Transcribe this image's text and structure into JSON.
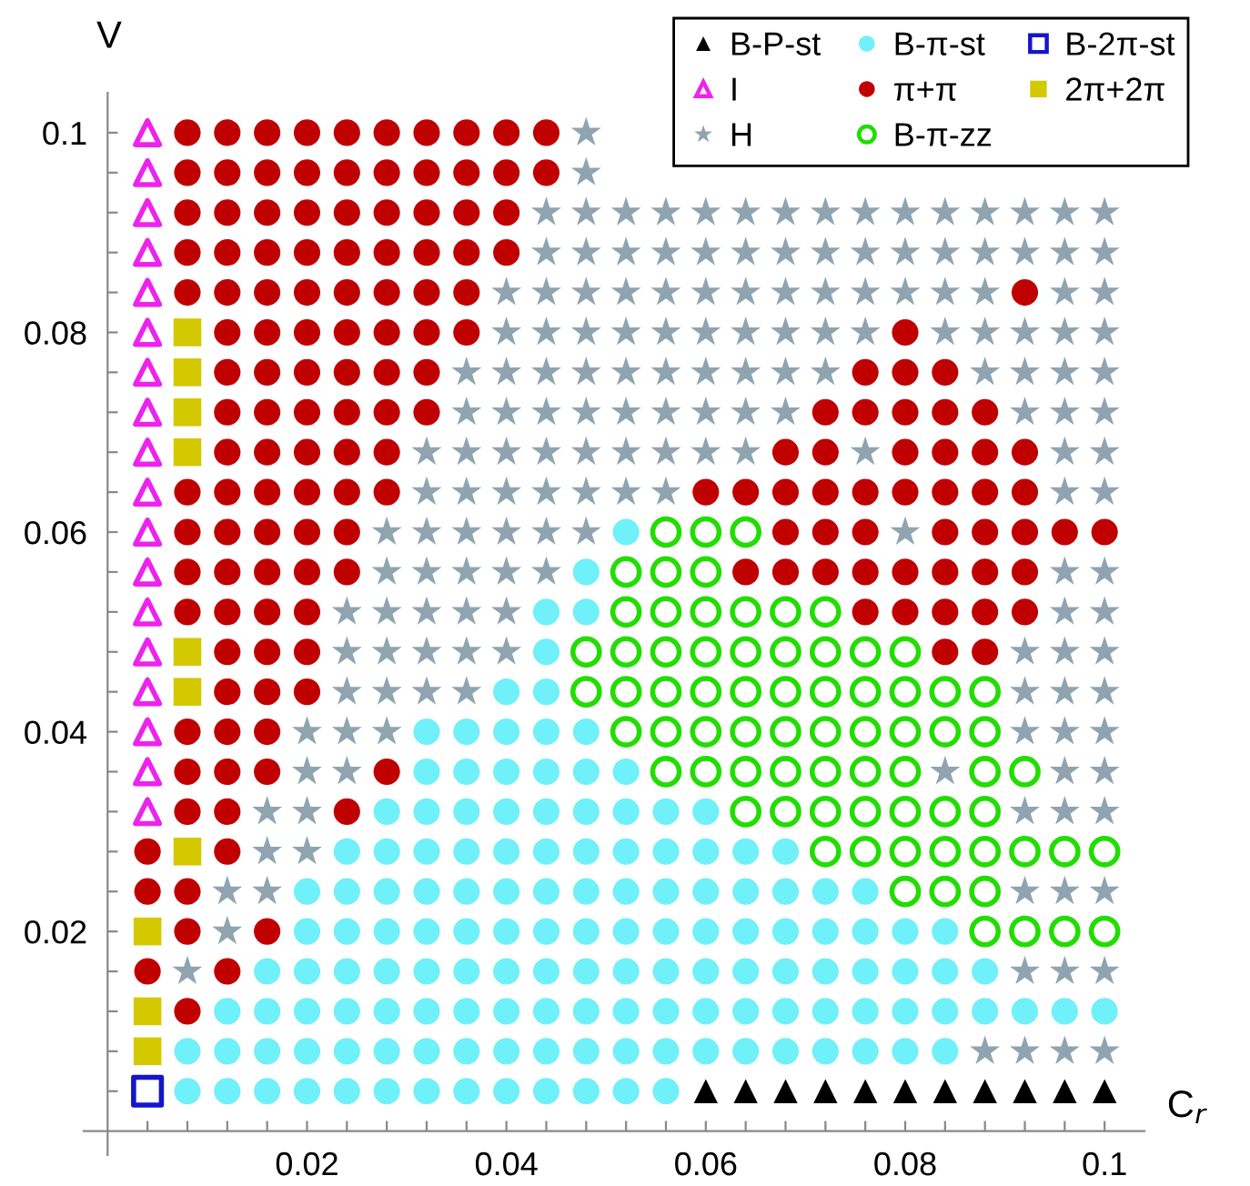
{
  "chart_data": {
    "type": "scatter",
    "xlabel": "C$_{r}$",
    "ylabel": "V",
    "xlim": [
      -0.0024,
      0.104
    ],
    "ylim": [
      -0.0024,
      0.104
    ],
    "xticks": [
      {
        "value": 0.004,
        "label": null
      },
      {
        "value": 0.008,
        "label": null
      },
      {
        "value": 0.012,
        "label": null
      },
      {
        "value": 0.016,
        "label": null
      },
      0.02,
      {
        "value": 0.024,
        "label": null
      },
      {
        "value": 0.028,
        "label": null
      },
      {
        "value": 0.032,
        "label": null
      },
      {
        "value": 0.036,
        "label": null
      },
      0.04,
      {
        "value": 0.044,
        "label": null
      },
      {
        "value": 0.048,
        "label": null
      },
      {
        "value": 0.052,
        "label": null
      },
      {
        "value": 0.056,
        "label": null
      },
      0.06,
      {
        "value": 0.064,
        "label": null
      },
      {
        "value": 0.068,
        "label": null
      },
      {
        "value": 0.072,
        "label": null
      },
      {
        "value": 0.076,
        "label": null
      },
      0.08,
      {
        "value": 0.084,
        "label": null
      },
      {
        "value": 0.088,
        "label": null
      },
      {
        "value": 0.092,
        "label": null
      },
      {
        "value": 0.096,
        "label": null
      },
      0.1
    ],
    "yticks": [
      {
        "value": 0.004,
        "label": null
      },
      {
        "value": 0.008,
        "label": null
      },
      {
        "value": 0.012,
        "label": null
      },
      {
        "value": 0.016,
        "label": null
      },
      0.02,
      {
        "value": 0.024,
        "label": null
      },
      {
        "value": 0.028,
        "label": null
      },
      {
        "value": 0.032,
        "label": null
      },
      {
        "value": 0.036,
        "label": null
      },
      0.04,
      {
        "value": 0.044,
        "label": null
      },
      {
        "value": 0.048,
        "label": null
      },
      {
        "value": 0.052,
        "label": null
      },
      {
        "value": 0.056,
        "label": null
      },
      0.06,
      {
        "value": 0.064,
        "label": null
      },
      {
        "value": 0.068,
        "label": null
      },
      {
        "value": 0.072,
        "label": null
      },
      {
        "value": 0.076,
        "label": null
      },
      0.08,
      {
        "value": 0.084,
        "label": null
      },
      {
        "value": 0.088,
        "label": null
      },
      {
        "value": 0.092,
        "label": null
      },
      {
        "value": 0.096,
        "label": null
      },
      0.1
    ],
    "grid": false,
    "legend": "top right",
    "series": [
      {
        "name": "B-P-st",
        "color": "#000000",
        "marker": "triangle",
        "x": [
          0.06,
          0.064,
          0.068,
          0.072,
          0.076,
          0.08,
          0.084,
          0.088,
          0.092,
          0.096,
          0.1
        ],
        "values": [
          0.004,
          0.004,
          0.004,
          0.004,
          0.004,
          0.004,
          0.004,
          0.004,
          0.004,
          0.004,
          0.004
        ]
      },
      {
        "name": "I",
        "color": "#ee22ee",
        "marker": "triangle-open",
        "x": [
          0.004,
          0.004,
          0.004,
          0.004,
          0.004,
          0.004,
          0.004,
          0.004,
          0.004,
          0.004,
          0.004,
          0.004,
          0.004,
          0.004,
          0.004,
          0.004,
          0.004,
          0.004
        ],
        "values": [
          0.1,
          0.096,
          0.092,
          0.088,
          0.084,
          0.08,
          0.076,
          0.072,
          0.068,
          0.064,
          0.06,
          0.056,
          0.052,
          0.048,
          0.044,
          0.04,
          0.036,
          0.032
        ]
      },
      {
        "name": "H",
        "color": "#8fa4b0",
        "marker": "star",
        "x": [
          0.048,
          0.048,
          0.044,
          0.048,
          0.052,
          0.056,
          0.06,
          0.064,
          0.068,
          0.072,
          0.076,
          0.08,
          0.084,
          0.088,
          0.092,
          0.096,
          0.1,
          0.044,
          0.048,
          0.052,
          0.056,
          0.06,
          0.064,
          0.068,
          0.072,
          0.076,
          0.08,
          0.084,
          0.088,
          0.092,
          0.096,
          0.1,
          0.04,
          0.044,
          0.048,
          0.052,
          0.056,
          0.06,
          0.064,
          0.068,
          0.072,
          0.076,
          0.08,
          0.084,
          0.088,
          0.096,
          0.1,
          0.04,
          0.044,
          0.048,
          0.052,
          0.056,
          0.06,
          0.064,
          0.068,
          0.072,
          0.076,
          0.084,
          0.088,
          0.092,
          0.096,
          0.1,
          0.036,
          0.04,
          0.044,
          0.048,
          0.052,
          0.056,
          0.06,
          0.064,
          0.068,
          0.072,
          0.088,
          0.092,
          0.096,
          0.1,
          0.036,
          0.04,
          0.044,
          0.048,
          0.052,
          0.056,
          0.06,
          0.064,
          0.068,
          0.092,
          0.096,
          0.1,
          0.032,
          0.036,
          0.04,
          0.044,
          0.048,
          0.052,
          0.056,
          0.06,
          0.064,
          0.076,
          0.096,
          0.1,
          0.032,
          0.036,
          0.04,
          0.044,
          0.048,
          0.052,
          0.056,
          0.096,
          0.1,
          0.028,
          0.032,
          0.036,
          0.04,
          0.044,
          0.048,
          0.08,
          0.028,
          0.032,
          0.036,
          0.04,
          0.044,
          0.096,
          0.1,
          0.024,
          0.028,
          0.032,
          0.036,
          0.04,
          0.096,
          0.1,
          0.024,
          0.028,
          0.032,
          0.036,
          0.04,
          0.092,
          0.096,
          0.1,
          0.024,
          0.028,
          0.032,
          0.036,
          0.092,
          0.096,
          0.1,
          0.02,
          0.024,
          0.028,
          0.092,
          0.096,
          0.1,
          0.02,
          0.024,
          0.084,
          0.096,
          0.1,
          0.016,
          0.02,
          0.092,
          0.096,
          0.1,
          0.016,
          0.02,
          0.012,
          0.016,
          0.092,
          0.096,
          0.1,
          0.012,
          0.008,
          0.092,
          0.096,
          0.1,
          0.088,
          0.092,
          0.096,
          0.1
        ],
        "values": [
          0.1,
          0.096,
          0.092,
          0.092,
          0.092,
          0.092,
          0.092,
          0.092,
          0.092,
          0.092,
          0.092,
          0.092,
          0.092,
          0.092,
          0.092,
          0.092,
          0.092,
          0.088,
          0.088,
          0.088,
          0.088,
          0.088,
          0.088,
          0.088,
          0.088,
          0.088,
          0.088,
          0.088,
          0.088,
          0.088,
          0.088,
          0.088,
          0.084,
          0.084,
          0.084,
          0.084,
          0.084,
          0.084,
          0.084,
          0.084,
          0.084,
          0.084,
          0.084,
          0.084,
          0.084,
          0.084,
          0.084,
          0.08,
          0.08,
          0.08,
          0.08,
          0.08,
          0.08,
          0.08,
          0.08,
          0.08,
          0.08,
          0.08,
          0.08,
          0.08,
          0.08,
          0.08,
          0.076,
          0.076,
          0.076,
          0.076,
          0.076,
          0.076,
          0.076,
          0.076,
          0.076,
          0.076,
          0.076,
          0.076,
          0.076,
          0.076,
          0.072,
          0.072,
          0.072,
          0.072,
          0.072,
          0.072,
          0.072,
          0.072,
          0.072,
          0.072,
          0.072,
          0.072,
          0.068,
          0.068,
          0.068,
          0.068,
          0.068,
          0.068,
          0.068,
          0.068,
          0.068,
          0.068,
          0.068,
          0.068,
          0.064,
          0.064,
          0.064,
          0.064,
          0.064,
          0.064,
          0.064,
          0.064,
          0.064,
          0.06,
          0.06,
          0.06,
          0.06,
          0.06,
          0.06,
          0.06,
          0.056,
          0.056,
          0.056,
          0.056,
          0.056,
          0.056,
          0.056,
          0.052,
          0.052,
          0.052,
          0.052,
          0.052,
          0.052,
          0.052,
          0.048,
          0.048,
          0.048,
          0.048,
          0.048,
          0.048,
          0.048,
          0.048,
          0.044,
          0.044,
          0.044,
          0.044,
          0.044,
          0.044,
          0.044,
          0.04,
          0.04,
          0.04,
          0.04,
          0.04,
          0.04,
          0.036,
          0.036,
          0.036,
          0.036,
          0.036,
          0.032,
          0.032,
          0.032,
          0.032,
          0.032,
          0.028,
          0.028,
          0.024,
          0.024,
          0.024,
          0.024,
          0.024,
          0.02,
          0.016,
          0.016,
          0.016,
          0.016,
          0.008,
          0.008,
          0.008,
          0.008
        ]
      },
      {
        "name": "B-π-st",
        "color": "#70f0f8",
        "marker": "circle",
        "x": [
          0.052,
          0.048,
          0.044,
          0.048,
          0.044,
          0.04,
          0.044,
          0.032,
          0.036,
          0.04,
          0.044,
          0.048,
          0.032,
          0.036,
          0.04,
          0.044,
          0.048,
          0.052,
          0.028,
          0.032,
          0.036,
          0.04,
          0.044,
          0.048,
          0.052,
          0.056,
          0.06,
          0.024,
          0.028,
          0.032,
          0.036,
          0.04,
          0.044,
          0.048,
          0.052,
          0.056,
          0.06,
          0.064,
          0.068,
          0.02,
          0.024,
          0.028,
          0.032,
          0.036,
          0.04,
          0.044,
          0.048,
          0.052,
          0.056,
          0.06,
          0.064,
          0.068,
          0.072,
          0.076,
          0.02,
          0.024,
          0.028,
          0.032,
          0.036,
          0.04,
          0.044,
          0.048,
          0.052,
          0.056,
          0.06,
          0.064,
          0.068,
          0.072,
          0.076,
          0.08,
          0.084,
          0.016,
          0.02,
          0.024,
          0.028,
          0.032,
          0.036,
          0.04,
          0.044,
          0.048,
          0.052,
          0.056,
          0.06,
          0.064,
          0.068,
          0.072,
          0.076,
          0.08,
          0.084,
          0.088,
          0.012,
          0.016,
          0.02,
          0.024,
          0.028,
          0.032,
          0.036,
          0.04,
          0.044,
          0.048,
          0.052,
          0.056,
          0.06,
          0.064,
          0.068,
          0.072,
          0.076,
          0.08,
          0.084,
          0.088,
          0.092,
          0.096,
          0.1,
          0.008,
          0.012,
          0.016,
          0.02,
          0.024,
          0.028,
          0.032,
          0.036,
          0.04,
          0.044,
          0.048,
          0.052,
          0.056,
          0.06,
          0.064,
          0.068,
          0.072,
          0.076,
          0.08,
          0.084,
          0.008,
          0.012,
          0.016,
          0.02,
          0.024,
          0.028,
          0.032,
          0.036,
          0.04,
          0.044,
          0.048,
          0.052,
          0.056
        ],
        "values": [
          0.06,
          0.056,
          0.052,
          0.052,
          0.048,
          0.044,
          0.044,
          0.04,
          0.04,
          0.04,
          0.04,
          0.04,
          0.036,
          0.036,
          0.036,
          0.036,
          0.036,
          0.036,
          0.032,
          0.032,
          0.032,
          0.032,
          0.032,
          0.032,
          0.032,
          0.032,
          0.032,
          0.028,
          0.028,
          0.028,
          0.028,
          0.028,
          0.028,
          0.028,
          0.028,
          0.028,
          0.028,
          0.028,
          0.028,
          0.024,
          0.024,
          0.024,
          0.024,
          0.024,
          0.024,
          0.024,
          0.024,
          0.024,
          0.024,
          0.024,
          0.024,
          0.024,
          0.024,
          0.024,
          0.02,
          0.02,
          0.02,
          0.02,
          0.02,
          0.02,
          0.02,
          0.02,
          0.02,
          0.02,
          0.02,
          0.02,
          0.02,
          0.02,
          0.02,
          0.02,
          0.02,
          0.016,
          0.016,
          0.016,
          0.016,
          0.016,
          0.016,
          0.016,
          0.016,
          0.016,
          0.016,
          0.016,
          0.016,
          0.016,
          0.016,
          0.016,
          0.016,
          0.016,
          0.016,
          0.016,
          0.012,
          0.012,
          0.012,
          0.012,
          0.012,
          0.012,
          0.012,
          0.012,
          0.012,
          0.012,
          0.012,
          0.012,
          0.012,
          0.012,
          0.012,
          0.012,
          0.012,
          0.012,
          0.012,
          0.012,
          0.012,
          0.012,
          0.012,
          0.008,
          0.008,
          0.008,
          0.008,
          0.008,
          0.008,
          0.008,
          0.008,
          0.008,
          0.008,
          0.008,
          0.008,
          0.008,
          0.008,
          0.008,
          0.008,
          0.008,
          0.008,
          0.008,
          0.008,
          0.004,
          0.004,
          0.004,
          0.004,
          0.004,
          0.004,
          0.004,
          0.004,
          0.004,
          0.004,
          0.004,
          0.004,
          0.004
        ]
      },
      {
        "name": "π+π",
        "color": "#c00000",
        "marker": "circle",
        "x": [
          0.008,
          0.012,
          0.016,
          0.02,
          0.024,
          0.028,
          0.032,
          0.036,
          0.04,
          0.044,
          0.008,
          0.012,
          0.016,
          0.02,
          0.024,
          0.028,
          0.032,
          0.036,
          0.04,
          0.044,
          0.008,
          0.012,
          0.016,
          0.02,
          0.024,
          0.028,
          0.032,
          0.036,
          0.04,
          0.008,
          0.012,
          0.016,
          0.02,
          0.024,
          0.028,
          0.032,
          0.036,
          0.04,
          0.008,
          0.012,
          0.016,
          0.02,
          0.024,
          0.028,
          0.032,
          0.036,
          0.092,
          0.012,
          0.016,
          0.02,
          0.024,
          0.028,
          0.032,
          0.036,
          0.08,
          0.012,
          0.016,
          0.02,
          0.024,
          0.028,
          0.032,
          0.076,
          0.08,
          0.084,
          0.012,
          0.016,
          0.02,
          0.024,
          0.028,
          0.032,
          0.072,
          0.076,
          0.08,
          0.084,
          0.088,
          0.012,
          0.016,
          0.02,
          0.024,
          0.028,
          0.068,
          0.072,
          0.08,
          0.084,
          0.088,
          0.092,
          0.008,
          0.012,
          0.016,
          0.02,
          0.024,
          0.028,
          0.06,
          0.064,
          0.068,
          0.072,
          0.076,
          0.08,
          0.084,
          0.088,
          0.092,
          0.008,
          0.012,
          0.016,
          0.02,
          0.024,
          0.068,
          0.072,
          0.076,
          0.084,
          0.088,
          0.092,
          0.096,
          0.1,
          0.008,
          0.012,
          0.016,
          0.02,
          0.024,
          0.064,
          0.068,
          0.072,
          0.076,
          0.08,
          0.084,
          0.088,
          0.092,
          0.008,
          0.012,
          0.016,
          0.02,
          0.076,
          0.08,
          0.084,
          0.088,
          0.092,
          0.012,
          0.016,
          0.02,
          0.084,
          0.088,
          0.012,
          0.016,
          0.02,
          0.008,
          0.012,
          0.016,
          0.008,
          0.012,
          0.016,
          0.028,
          0.008,
          0.012,
          0.024,
          0.004,
          0.012,
          0.004,
          0.008,
          0.008,
          0.016,
          0.004,
          0.012,
          0.008
        ],
        "values": [
          0.1,
          0.1,
          0.1,
          0.1,
          0.1,
          0.1,
          0.1,
          0.1,
          0.1,
          0.1,
          0.096,
          0.096,
          0.096,
          0.096,
          0.096,
          0.096,
          0.096,
          0.096,
          0.096,
          0.096,
          0.092,
          0.092,
          0.092,
          0.092,
          0.092,
          0.092,
          0.092,
          0.092,
          0.092,
          0.088,
          0.088,
          0.088,
          0.088,
          0.088,
          0.088,
          0.088,
          0.088,
          0.088,
          0.084,
          0.084,
          0.084,
          0.084,
          0.084,
          0.084,
          0.084,
          0.084,
          0.084,
          0.08,
          0.08,
          0.08,
          0.08,
          0.08,
          0.08,
          0.08,
          0.08,
          0.076,
          0.076,
          0.076,
          0.076,
          0.076,
          0.076,
          0.076,
          0.076,
          0.076,
          0.072,
          0.072,
          0.072,
          0.072,
          0.072,
          0.072,
          0.072,
          0.072,
          0.072,
          0.072,
          0.072,
          0.068,
          0.068,
          0.068,
          0.068,
          0.068,
          0.068,
          0.068,
          0.068,
          0.068,
          0.068,
          0.068,
          0.064,
          0.064,
          0.064,
          0.064,
          0.064,
          0.064,
          0.064,
          0.064,
          0.064,
          0.064,
          0.064,
          0.064,
          0.064,
          0.064,
          0.064,
          0.06,
          0.06,
          0.06,
          0.06,
          0.06,
          0.06,
          0.06,
          0.06,
          0.06,
          0.06,
          0.06,
          0.06,
          0.06,
          0.056,
          0.056,
          0.056,
          0.056,
          0.056,
          0.056,
          0.056,
          0.056,
          0.056,
          0.056,
          0.056,
          0.056,
          0.056,
          0.052,
          0.052,
          0.052,
          0.052,
          0.052,
          0.052,
          0.052,
          0.052,
          0.052,
          0.048,
          0.048,
          0.048,
          0.048,
          0.048,
          0.044,
          0.044,
          0.044,
          0.04,
          0.04,
          0.04,
          0.036,
          0.036,
          0.036,
          0.036,
          0.032,
          0.032,
          0.032,
          0.028,
          0.028,
          0.024,
          0.024,
          0.02,
          0.02,
          0.016,
          0.016,
          0.012
        ]
      },
      {
        "name": "B-π-zz",
        "color": "#22dd00",
        "marker": "circle-open",
        "x": [
          0.056,
          0.06,
          0.064,
          0.052,
          0.056,
          0.06,
          0.052,
          0.056,
          0.06,
          0.064,
          0.068,
          0.072,
          0.048,
          0.052,
          0.056,
          0.06,
          0.064,
          0.068,
          0.072,
          0.076,
          0.08,
          0.048,
          0.052,
          0.056,
          0.06,
          0.064,
          0.068,
          0.072,
          0.076,
          0.08,
          0.084,
          0.088,
          0.052,
          0.056,
          0.06,
          0.064,
          0.068,
          0.072,
          0.076,
          0.08,
          0.084,
          0.088,
          0.056,
          0.06,
          0.064,
          0.068,
          0.072,
          0.076,
          0.08,
          0.088,
          0.092,
          0.064,
          0.068,
          0.072,
          0.076,
          0.08,
          0.084,
          0.088,
          0.072,
          0.076,
          0.08,
          0.084,
          0.088,
          0.092,
          0.096,
          0.1,
          0.08,
          0.084,
          0.088,
          0.088,
          0.092,
          0.096,
          0.1
        ],
        "values": [
          0.06,
          0.06,
          0.06,
          0.056,
          0.056,
          0.056,
          0.052,
          0.052,
          0.052,
          0.052,
          0.052,
          0.052,
          0.048,
          0.048,
          0.048,
          0.048,
          0.048,
          0.048,
          0.048,
          0.048,
          0.048,
          0.044,
          0.044,
          0.044,
          0.044,
          0.044,
          0.044,
          0.044,
          0.044,
          0.044,
          0.044,
          0.044,
          0.04,
          0.04,
          0.04,
          0.04,
          0.04,
          0.04,
          0.04,
          0.04,
          0.04,
          0.04,
          0.036,
          0.036,
          0.036,
          0.036,
          0.036,
          0.036,
          0.036,
          0.036,
          0.036,
          0.032,
          0.032,
          0.032,
          0.032,
          0.032,
          0.032,
          0.032,
          0.028,
          0.028,
          0.028,
          0.028,
          0.028,
          0.028,
          0.028,
          0.028,
          0.024,
          0.024,
          0.024,
          0.02,
          0.02,
          0.02,
          0.02
        ]
      },
      {
        "name": "B-2π-st",
        "color": "#1515cc",
        "marker": "square-open",
        "x": [
          0.004
        ],
        "values": [
          0.004
        ]
      },
      {
        "name": "2π+2π",
        "color": "#d4c800",
        "marker": "square",
        "x": [
          0.008,
          0.008,
          0.008,
          0.008,
          0.008,
          0.008,
          0.008,
          0.004,
          0.004,
          0.004
        ],
        "values": [
          0.08,
          0.076,
          0.072,
          0.068,
          0.048,
          0.044,
          0.028,
          0.02,
          0.012,
          0.008
        ]
      }
    ]
  }
}
